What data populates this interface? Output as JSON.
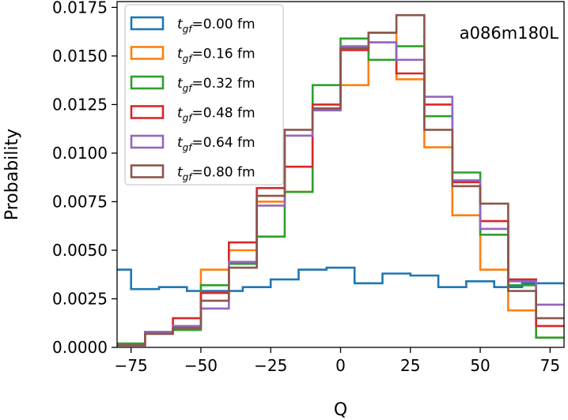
{
  "chart_data": {
    "type": "step-histogram",
    "title": "",
    "xlabel": "Q",
    "ylabel": "Probability",
    "xlim": [
      -80,
      80
    ],
    "ylim": [
      0,
      0.0178
    ],
    "x_ticks": [
      -75,
      -50,
      -25,
      0,
      25,
      50,
      75
    ],
    "x_tick_labels": [
      "−75",
      "−50",
      "−25",
      "0",
      "25",
      "50",
      "75"
    ],
    "y_ticks": [
      0,
      0.0025,
      0.005,
      0.0075,
      0.01,
      0.0125,
      0.015,
      0.0175
    ],
    "y_tick_labels": [
      "0.0000",
      "0.0025",
      "0.0050",
      "0.0075",
      "0.0100",
      "0.0125",
      "0.0150",
      "0.0175"
    ],
    "annotation": "a086m180L",
    "legend_position": "top-left",
    "bin_edges": [
      -80,
      -75,
      -70,
      -65,
      -60,
      -55,
      -50,
      -45,
      -40,
      -35,
      -30,
      -25,
      -20,
      -15,
      -10,
      -5,
      0,
      5,
      10,
      15,
      20,
      25,
      30,
      35,
      40,
      45,
      50,
      55,
      60,
      65,
      70,
      75,
      80
    ],
    "series": [
      {
        "name": "t_gf=0.00 fm",
        "label_prefix": "t",
        "label_sub": "gf",
        "label_suffix": "=0.00 fm",
        "color": "#1f77b4",
        "values": [
          0.004,
          0.003,
          0.003,
          0.0031,
          0.0031,
          0.0029,
          0.0029,
          0.0029,
          0.0029,
          0.0031,
          0.0031,
          0.0035,
          0.0035,
          0.004,
          0.004,
          0.0041,
          0.0041,
          0.0033,
          0.0033,
          0.0038,
          0.0038,
          0.0037,
          0.0037,
          0.0031,
          0.0031,
          0.0034,
          0.0034,
          0.0031,
          0.0031,
          0.0033,
          0.0033,
          0.0033
        ]
      },
      {
        "name": "t_gf=0.16 fm",
        "label_prefix": "t",
        "label_sub": "gf",
        "label_suffix": "=0.16 fm",
        "color": "#ff7f0e",
        "values": [
          0.0001,
          0.0001,
          0.0008,
          0.0008,
          0.001,
          0.001,
          0.004,
          0.004,
          0.005,
          0.005,
          0.0075,
          0.0075,
          0.008,
          0.008,
          0.0123,
          0.0123,
          0.0135,
          0.0135,
          0.0162,
          0.0162,
          0.0138,
          0.0138,
          0.0103,
          0.0103,
          0.0068,
          0.0068,
          0.004,
          0.004,
          0.0019,
          0.0019,
          0.0005,
          0.0005
        ]
      },
      {
        "name": "t_gf=0.32 fm",
        "label_prefix": "t",
        "label_sub": "gf",
        "label_suffix": "=0.32 fm",
        "color": "#2ca02c",
        "values": [
          0.0002,
          0.0002,
          0.0008,
          0.0008,
          0.0009,
          0.0009,
          0.0032,
          0.0032,
          0.0043,
          0.0043,
          0.0057,
          0.0057,
          0.008,
          0.008,
          0.0135,
          0.0135,
          0.0159,
          0.0159,
          0.0148,
          0.0148,
          0.0155,
          0.0155,
          0.0119,
          0.0119,
          0.009,
          0.009,
          0.0058,
          0.0058,
          0.0032,
          0.0032,
          0.0005,
          0.0005
        ]
      },
      {
        "name": "t_gf=0.48 fm",
        "label_prefix": "t",
        "label_sub": "gf",
        "label_suffix": "=0.48 fm",
        "color": "#d62728",
        "values": [
          0.0001,
          0.0001,
          0.0007,
          0.0007,
          0.0015,
          0.0015,
          0.0028,
          0.0028,
          0.0054,
          0.0054,
          0.0082,
          0.0082,
          0.0093,
          0.0093,
          0.0125,
          0.0125,
          0.0153,
          0.0153,
          0.0157,
          0.0157,
          0.0141,
          0.0141,
          0.0125,
          0.0125,
          0.0085,
          0.0085,
          0.0065,
          0.0065,
          0.0035,
          0.0035,
          0.0011,
          0.0011
        ]
      },
      {
        "name": "t_gf=0.64 fm",
        "label_prefix": "t",
        "label_sub": "gf",
        "label_suffix": "=0.64 fm",
        "color": "#9467bd",
        "values": [
          0.0001,
          0.0001,
          0.0008,
          0.0008,
          0.0011,
          0.0011,
          0.002,
          0.002,
          0.0044,
          0.0044,
          0.0073,
          0.0073,
          0.0109,
          0.0109,
          0.0122,
          0.0122,
          0.0155,
          0.0155,
          0.0157,
          0.0157,
          0.0148,
          0.0148,
          0.0129,
          0.0129,
          0.0086,
          0.0086,
          0.0061,
          0.0061,
          0.0034,
          0.0034,
          0.0022,
          0.0022
        ]
      },
      {
        "name": "t_gf=0.80 fm",
        "label_prefix": "t",
        "label_sub": "gf",
        "label_suffix": "=0.80 fm",
        "color": "#8c564b",
        "values": [
          0.0001,
          0.0001,
          0.0007,
          0.0007,
          0.001,
          0.001,
          0.0024,
          0.0024,
          0.0041,
          0.0041,
          0.0078,
          0.0078,
          0.0112,
          0.0112,
          0.0123,
          0.0123,
          0.0154,
          0.0154,
          0.0162,
          0.0162,
          0.0171,
          0.0171,
          0.0112,
          0.0112,
          0.0083,
          0.0083,
          0.0074,
          0.0074,
          0.0029,
          0.0029,
          0.0015,
          0.0015
        ]
      }
    ]
  }
}
